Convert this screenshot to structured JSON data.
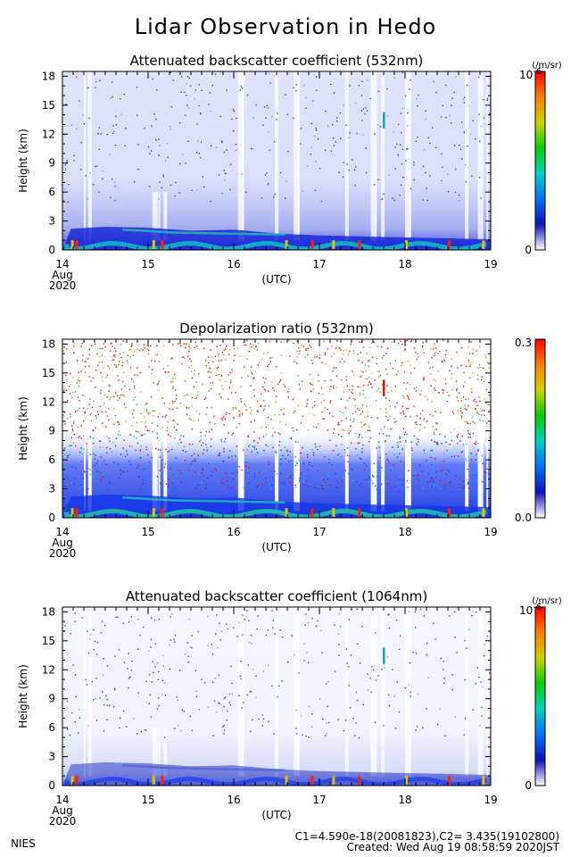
{
  "figure": {
    "title": "Lidar Observation in Hedo",
    "footer_left": "NIES",
    "footer_calib": "C1=4.590e-18(20081823),C2= 3.435(19102800)",
    "footer_created": "Created: Wed Aug 19 08:58:59 2020JST"
  },
  "chart_data": [
    {
      "type": "heatmap",
      "title": "Attenuated backscatter coefficient (532nm)",
      "ylabel": "Height (km)",
      "xlabel": "(UTC)",
      "x_ticks": [
        "14",
        "15",
        "16",
        "17",
        "18",
        "19"
      ],
      "x_first_sub": [
        "Aug",
        "2020"
      ],
      "xlim": [
        14,
        19
      ],
      "y_ticks": [
        "0",
        "3",
        "6",
        "9",
        "12",
        "15",
        "18"
      ],
      "ylim": [
        0,
        18.5
      ],
      "colorbar": {
        "max_label": "10",
        "max_exp": "-6",
        "min_label": "0",
        "unit": "(/m/sr)"
      },
      "colormap": [
        "#ffffff",
        "#1010c0",
        "#0070ff",
        "#00d0c0",
        "#00d000",
        "#d0d000",
        "#ff8000",
        "#ff0000"
      ],
      "boundary_layer_top_km": [
        {
          "x": 14.1,
          "y": 2.2
        },
        {
          "x": 14.5,
          "y": 2.4
        },
        {
          "x": 15.0,
          "y": 2.3
        },
        {
          "x": 15.5,
          "y": 2.0
        },
        {
          "x": 16.0,
          "y": 2.1
        },
        {
          "x": 16.5,
          "y": 1.7
        },
        {
          "x": 17.0,
          "y": 1.5
        },
        {
          "x": 17.5,
          "y": 1.4
        },
        {
          "x": 18.0,
          "y": 1.3
        },
        {
          "x": 18.5,
          "y": 1.2
        },
        {
          "x": 19.0,
          "y": 1.1
        }
      ]
    },
    {
      "type": "heatmap",
      "title": "Depolarization ratio (532nm)",
      "ylabel": "Height (km)",
      "xlabel": "(UTC)",
      "x_ticks": [
        "14",
        "15",
        "16",
        "17",
        "18",
        "19"
      ],
      "x_first_sub": [
        "Aug",
        "2020"
      ],
      "xlim": [
        14,
        19
      ],
      "y_ticks": [
        "0",
        "3",
        "6",
        "9",
        "12",
        "15",
        "18"
      ],
      "ylim": [
        0,
        18.5
      ],
      "colorbar": {
        "max_label": "0.3",
        "min_label": "0.0"
      },
      "colormap": [
        "#ffffff",
        "#1010c0",
        "#0070ff",
        "#00d0c0",
        "#00d000",
        "#d0d000",
        "#ff8000",
        "#ff0000"
      ]
    },
    {
      "type": "heatmap",
      "title": "Attenuated backscatter coefficient (1064nm)",
      "ylabel": "Height (km)",
      "xlabel": "(UTC)",
      "x_ticks": [
        "14",
        "15",
        "16",
        "17",
        "18",
        "19"
      ],
      "x_first_sub": [
        "Aug",
        "2020"
      ],
      "xlim": [
        14,
        19
      ],
      "y_ticks": [
        "0",
        "3",
        "6",
        "9",
        "12",
        "15",
        "18"
      ],
      "ylim": [
        0,
        18.5
      ],
      "colorbar": {
        "max_label": "10",
        "max_exp": "-6",
        "min_label": "0",
        "unit": "(/m/sr)"
      },
      "colormap": [
        "#ffffff",
        "#1010c0",
        "#0070ff",
        "#00d0c0",
        "#00d000",
        "#d0d000",
        "#ff8000",
        "#ff0000"
      ]
    }
  ]
}
